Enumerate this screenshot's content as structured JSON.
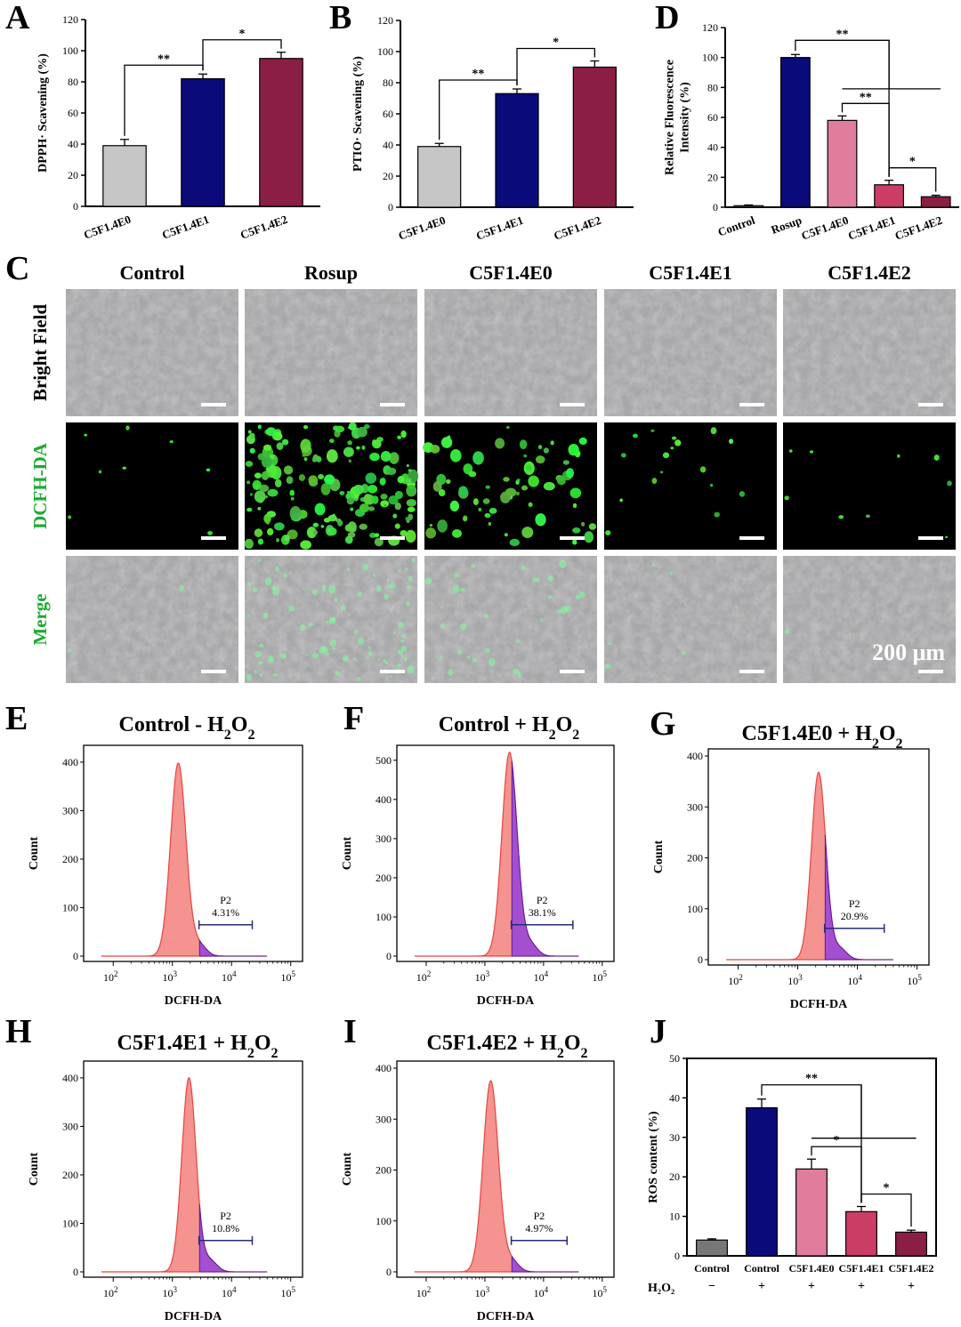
{
  "panels": {
    "A": "A",
    "B": "B",
    "C": "C",
    "D": "D",
    "E": "E",
    "F": "F",
    "G": "G",
    "H": "H",
    "I": "I",
    "J": "J"
  },
  "chart_data": [
    {
      "id": "A",
      "type": "bar",
      "categories": [
        "C5F1.4E0",
        "C5F1.4E1",
        "C5F1.4E2"
      ],
      "values": [
        39,
        82,
        95
      ],
      "errors": [
        4,
        3,
        4
      ],
      "colors": [
        "#c6c6c6",
        "#0a0a7a",
        "#8b1e45"
      ],
      "ylabel": "DPPH· Scavening (%)",
      "ylim": [
        0,
        120
      ],
      "yticks": [
        0,
        20,
        40,
        60,
        80,
        100,
        120
      ],
      "brackets": [
        {
          "from": 0,
          "to": 1,
          "label": "**"
        },
        {
          "from": 1,
          "to": 2,
          "label": "*"
        }
      ]
    },
    {
      "id": "B",
      "type": "bar",
      "categories": [
        "C5F1.4E0",
        "C5F1.4E1",
        "C5F1.4E2"
      ],
      "values": [
        39,
        73,
        90
      ],
      "errors": [
        2,
        3,
        4
      ],
      "colors": [
        "#c6c6c6",
        "#0a0a7a",
        "#8b1e45"
      ],
      "ylabel": "PTIO· Scavening (%)",
      "ylim": [
        0,
        120
      ],
      "yticks": [
        0,
        20,
        40,
        60,
        80,
        100,
        120
      ],
      "brackets": [
        {
          "from": 0,
          "to": 1,
          "label": "**"
        },
        {
          "from": 1,
          "to": 2,
          "label": "*"
        }
      ]
    },
    {
      "id": "D",
      "type": "bar",
      "categories": [
        "Control",
        "Rosup",
        "C5F1.4E0",
        "C5F1.4E1",
        "C5F1.4E2"
      ],
      "values": [
        1,
        100,
        58,
        15,
        7
      ],
      "errors": [
        0.5,
        2,
        3,
        3,
        1
      ],
      "colors": [
        "#777777",
        "#0a0a7a",
        "#e07d9c",
        "#cc3d66",
        "#8b1e45"
      ],
      "ylabel": "Relative Fluorescence Intensity (%)",
      "ylim": [
        0,
        120
      ],
      "yticks": [
        0,
        20,
        40,
        60,
        80,
        100,
        120
      ],
      "brackets": [
        {
          "from": 1,
          "to": 3,
          "label": "**",
          "bar_to": 4.6
        },
        {
          "from": 2,
          "to": 3,
          "label": "**"
        },
        {
          "from": 3,
          "to": 4,
          "label": "*"
        }
      ]
    },
    {
      "id": "J",
      "type": "bar",
      "categories": [
        "Control",
        "Control",
        "C5F1.4E0",
        "C5F1.4E1",
        "C5F1.4E2"
      ],
      "h2o2": [
        "−",
        "+",
        "+",
        "+",
        "+"
      ],
      "h2o2_label": "H₂O₂",
      "values": [
        4,
        37.5,
        22,
        11.2,
        6
      ],
      "errors": [
        0.3,
        2.2,
        2.5,
        1.3,
        0.5
      ],
      "colors": [
        "#777777",
        "#0a0a7a",
        "#e07d9c",
        "#cc3d66",
        "#8b1e45"
      ],
      "ylabel": "ROS content (%)",
      "ylim": [
        0,
        50
      ],
      "yticks": [
        0,
        10,
        20,
        30,
        40,
        50
      ],
      "brackets": [
        {
          "from": 1,
          "to": 3,
          "label": "**",
          "bar_to": 4.6
        },
        {
          "from": 2,
          "to": 3,
          "label": "*"
        },
        {
          "from": 3,
          "to": 4,
          "label": "*"
        }
      ]
    }
  ],
  "histograms": [
    {
      "id": "E",
      "title": "Control - H",
      "sub": "2",
      "title2": "O",
      "sub2": "2",
      "xlabel": "DCFH-DA",
      "ylabel": "Count",
      "yticks": [
        0,
        100,
        200,
        300,
        400
      ],
      "ymax": 420,
      "peak_log": 3.1,
      "peak_count": 398,
      "sigma": 0.13,
      "gate_log": [
        3.45,
        4.35
      ],
      "gate_name": "P2",
      "gate_value": "4.31%"
    },
    {
      "id": "F",
      "title": "Control + H",
      "sub": "2",
      "title2": "O",
      "sub2": "2",
      "xlabel": "DCFH-DA",
      "ylabel": "Count",
      "yticks": [
        0,
        100,
        200,
        300,
        400,
        500
      ],
      "ymax": 520,
      "peak_log": 3.42,
      "peak_count": 520,
      "sigma": 0.13,
      "gate_log": [
        3.45,
        4.5
      ],
      "gate_name": "P2",
      "gate_value": "38.1%"
    },
    {
      "id": "G",
      "title": "C5F1.4E0 + H",
      "sub": "2",
      "title2": "O",
      "sub2": "2",
      "xlabel": "DCFH-DA",
      "ylabel": "Count",
      "yticks": [
        0,
        100,
        200,
        300,
        400
      ],
      "ymax": 400,
      "peak_log": 3.35,
      "peak_count": 368,
      "sigma": 0.12,
      "gate_log": [
        3.45,
        4.45
      ],
      "gate_name": "P2",
      "gate_value": "20.9%"
    },
    {
      "id": "H",
      "title": "C5F1.4E1 + H",
      "sub": "2",
      "title2": "O",
      "sub2": "2",
      "xlabel": "DCFH-DA",
      "ylabel": "Count",
      "yticks": [
        0,
        100,
        200,
        300,
        400
      ],
      "ymax": 420,
      "peak_log": 3.28,
      "peak_count": 400,
      "sigma": 0.12,
      "gate_log": [
        3.45,
        4.35
      ],
      "gate_name": "P2",
      "gate_value": "10.8%"
    },
    {
      "id": "I",
      "title": "C5F1.4E2 + H",
      "sub": "2",
      "title2": "O",
      "sub2": "2",
      "xlabel": "DCFH-DA",
      "ylabel": "Count",
      "yticks": [
        0,
        100,
        200,
        300,
        400
      ],
      "ymax": 400,
      "peak_log": 3.1,
      "peak_count": 375,
      "sigma": 0.13,
      "gate_log": [
        3.45,
        4.4
      ],
      "gate_name": "P2",
      "gate_value": "4.97%"
    }
  ],
  "micro": {
    "columns": [
      "Control",
      "Rosup",
      "C5F1.4E0",
      "C5F1.4E1",
      "C5F1.4E2"
    ],
    "rows": [
      "Bright Field",
      "DCFH-DA",
      "Merge"
    ],
    "row_colors": [
      "#000000",
      "#1faa33",
      "#1faa33"
    ],
    "green_density": [
      0.02,
      0.9,
      0.35,
      0.07,
      0.03
    ],
    "scale_bar_label": "200 μm"
  },
  "xticks_log": [
    "10",
    "10",
    "10",
    "10"
  ],
  "xticks_exp": [
    "2",
    "3",
    "4",
    "5"
  ]
}
